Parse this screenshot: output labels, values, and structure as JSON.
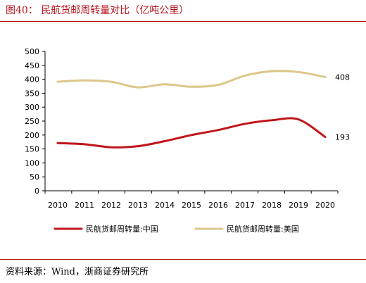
{
  "figure": {
    "title": "图40：  民航货邮周转量对比（亿吨公里）",
    "source": "资料来源：Wind，浙商证券研究所"
  },
  "chart_data": {
    "type": "line",
    "title": "民航货邮周转量对比（亿吨公里）",
    "xlabel": "",
    "ylabel": "",
    "x": [
      "2010",
      "2011",
      "2012",
      "2013",
      "2014",
      "2015",
      "2016",
      "2017",
      "2018",
      "2019",
      "2020"
    ],
    "ylim": [
      0,
      500
    ],
    "yticks": [
      0,
      50,
      100,
      150,
      200,
      250,
      300,
      350,
      400,
      450,
      500
    ],
    "grid": false,
    "legend_position": "bottom",
    "series": [
      {
        "name": "民航货邮周转量:中国",
        "color": "#c0161c",
        "values": [
          171,
          167,
          156,
          160,
          178,
          200,
          218,
          240,
          253,
          256,
          193
        ],
        "end_label": "193"
      },
      {
        "name": "民航货邮周转量:美国",
        "color": "#dcc78a",
        "values": [
          391,
          396,
          391,
          371,
          382,
          373,
          380,
          413,
          429,
          426,
          408
        ],
        "end_label": "408"
      }
    ]
  }
}
